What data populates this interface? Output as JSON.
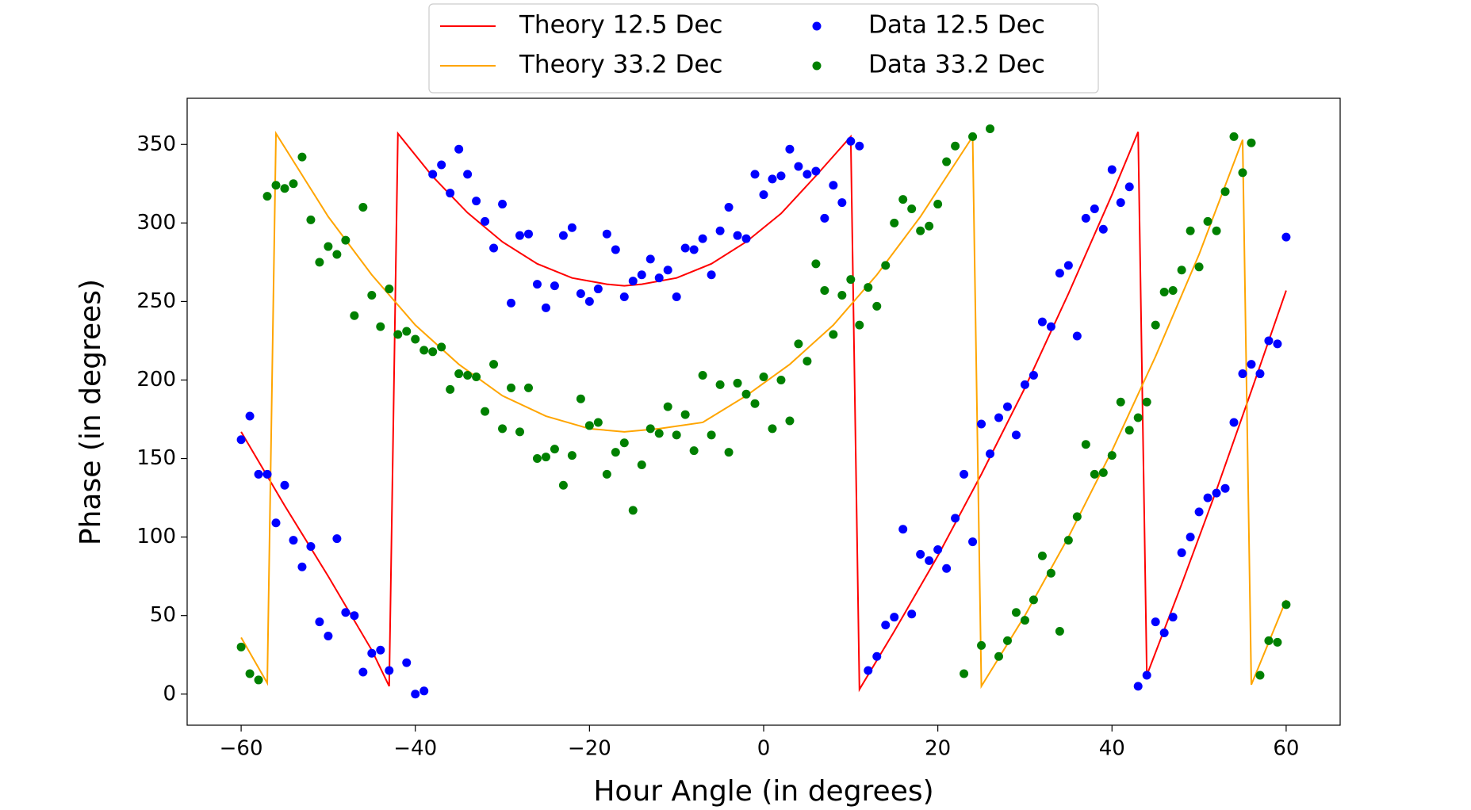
{
  "chart_data": {
    "type": "line",
    "xlabel": "Hour Angle (in degrees)",
    "ylabel": "Phase (in degrees)",
    "xlim": [
      -66.2,
      66.2
    ],
    "ylim": [
      -19.8,
      379.4
    ],
    "xticks": [
      {
        "value": -60,
        "label": "−60"
      },
      {
        "value": -40,
        "label": "−40"
      },
      {
        "value": -20,
        "label": "−20"
      },
      0,
      20,
      40,
      60
    ],
    "yticks": [
      0,
      50,
      100,
      150,
      200,
      250,
      300,
      350
    ],
    "legend_loc": "upper center",
    "legend_ncol": 2,
    "series": [
      {
        "name": "Theory 12.5 Dec",
        "type": "line",
        "color": "#ff0000",
        "x": [
          -60,
          -55,
          -50,
          -45,
          -43,
          -42,
          -38,
          -34,
          -30,
          -26,
          -22,
          -18,
          -16,
          -14,
          -10,
          -6,
          -2,
          2,
          6,
          10,
          11,
          15,
          20,
          25,
          30,
          35,
          40,
          43,
          44,
          48,
          52,
          56,
          60
        ],
        "values": [
          167,
          120,
          75,
          28,
          5,
          357,
          329.5,
          306.5,
          288,
          274,
          265,
          261,
          260,
          261,
          265,
          274,
          288,
          306,
          330,
          355,
          3,
          40,
          88,
          140,
          195,
          255,
          318,
          358,
          12,
          70,
          130,
          193,
          257
        ]
      },
      {
        "name": "Theory 33.2 Dec",
        "type": "line",
        "color": "#ffa500",
        "x": [
          -60,
          -57,
          -56,
          -50,
          -45,
          -40,
          -35,
          -30,
          -25,
          -20,
          -16,
          -12,
          -7,
          -2,
          3,
          8,
          13,
          18,
          24,
          25,
          30,
          35,
          40,
          45,
          50,
          55,
          56,
          60
        ],
        "values": [
          36,
          7,
          357,
          304,
          267,
          235,
          210,
          190,
          177,
          169,
          167,
          169,
          173,
          190,
          210,
          235,
          267,
          304,
          355,
          5,
          50,
          100,
          155,
          215,
          280,
          353,
          6,
          60
        ]
      },
      {
        "name": "Data 12.5 Dec",
        "type": "scatter",
        "color": "#0000ff",
        "x": [
          -60,
          -59,
          -58,
          -57,
          -56,
          -55,
          -54,
          -53,
          -52,
          -51,
          -50,
          -49,
          -48,
          -47,
          -46,
          -45,
          -44,
          -43,
          -42,
          -41,
          -40,
          -39,
          -38,
          -37,
          -36,
          -35,
          -34,
          -33,
          -32,
          -31,
          -30,
          -29,
          -28,
          -27,
          -26,
          -25,
          -24,
          -23,
          -22,
          -21,
          -20,
          -19,
          -18,
          -17,
          -16,
          -15,
          -14,
          -13,
          -12,
          -11,
          -10,
          -9,
          -8,
          -7,
          -6,
          -5,
          -4,
          -3,
          -2,
          -1,
          0,
          1,
          2,
          3,
          4,
          5,
          6,
          7,
          8,
          9,
          10,
          11,
          12,
          13,
          14,
          15,
          16,
          17,
          18,
          19,
          20,
          21,
          22,
          23,
          24,
          25,
          26,
          27,
          28,
          29,
          30,
          31,
          32,
          33,
          34,
          35,
          36,
          37,
          38,
          39,
          40,
          41,
          42,
          43,
          44,
          45,
          46,
          47,
          48,
          49,
          50,
          51,
          52,
          53,
          54,
          55,
          56,
          57,
          58,
          59,
          60
        ],
        "values": [
          162,
          177,
          140,
          140,
          109,
          133,
          98,
          81,
          94,
          46,
          37,
          99,
          52,
          50,
          14,
          26,
          28,
          15,
          null,
          20,
          0,
          2,
          331,
          337,
          319,
          347,
          331,
          314,
          301,
          284,
          312,
          249,
          292,
          293,
          261,
          246,
          260,
          292,
          297,
          255,
          250,
          258,
          293,
          283,
          253,
          263,
          267,
          277,
          265,
          270,
          253,
          284,
          283,
          290,
          267,
          295,
          310,
          292,
          290,
          331,
          318,
          328,
          330,
          347,
          336,
          331,
          333,
          303,
          324,
          313,
          352,
          349,
          15,
          24,
          44,
          49,
          105,
          51,
          89,
          85,
          92,
          80,
          112,
          140,
          97,
          172,
          153,
          176,
          183,
          165,
          197,
          203,
          237,
          234,
          268,
          273,
          228,
          303,
          309,
          296,
          334,
          313,
          323,
          5,
          12,
          46,
          39,
          49,
          90,
          100,
          116,
          125,
          128,
          131,
          173,
          204,
          210,
          204,
          225,
          223,
          291
        ]
      },
      {
        "name": "Data 33.2 Dec",
        "type": "scatter",
        "color": "#008000",
        "x": [
          -60,
          -59,
          -58,
          -57,
          -56,
          -55,
          -54,
          -53,
          -52,
          -51,
          -50,
          -49,
          -48,
          -47,
          -46,
          -45,
          -44,
          -43,
          -42,
          -41,
          -40,
          -39,
          -38,
          -37,
          -36,
          -35,
          -34,
          -33,
          -32,
          -31,
          -30,
          -29,
          -28,
          -27,
          -26,
          -25,
          -24,
          -23,
          -22,
          -21,
          -20,
          -19,
          -18,
          -17,
          -16,
          -15,
          -14,
          -13,
          -12,
          -11,
          -10,
          -9,
          -8,
          -7,
          -6,
          -5,
          -4,
          -3,
          -2,
          -1,
          0,
          1,
          2,
          3,
          4,
          5,
          6,
          7,
          8,
          9,
          10,
          11,
          12,
          13,
          14,
          15,
          16,
          17,
          18,
          19,
          20,
          21,
          22,
          23,
          24,
          25,
          26,
          27,
          28,
          29,
          30,
          31,
          32,
          33,
          34,
          35,
          36,
          37,
          38,
          39,
          40,
          41,
          42,
          43,
          44,
          45,
          46,
          47,
          48,
          49,
          50,
          51,
          52,
          53,
          54,
          55,
          56,
          57,
          58,
          59,
          60
        ],
        "values": [
          30,
          13,
          9,
          317,
          324,
          322,
          325,
          342,
          302,
          275,
          285,
          280,
          289,
          241,
          310,
          254,
          234,
          258,
          229,
          231,
          226,
          219,
          218,
          221,
          194,
          204,
          203,
          202,
          180,
          210,
          169,
          195,
          167,
          195,
          150,
          151,
          156,
          133,
          152,
          188,
          171,
          173,
          140,
          154,
          160,
          117,
          146,
          169,
          166,
          183,
          165,
          178,
          155,
          203,
          165,
          197,
          154,
          198,
          191,
          185,
          202,
          169,
          200,
          174,
          223,
          212,
          274,
          257,
          229,
          254,
          264,
          235,
          259,
          247,
          273,
          300,
          315,
          309,
          295,
          298,
          312,
          339,
          349,
          13,
          355,
          31,
          360,
          24,
          34,
          52,
          47,
          60,
          88,
          77,
          40,
          98,
          113,
          159,
          140,
          141,
          152,
          186,
          168,
          176,
          186,
          235,
          256,
          257,
          270,
          295,
          272,
          301,
          295,
          320,
          355,
          332,
          351,
          12,
          34,
          33,
          57
        ]
      }
    ]
  }
}
